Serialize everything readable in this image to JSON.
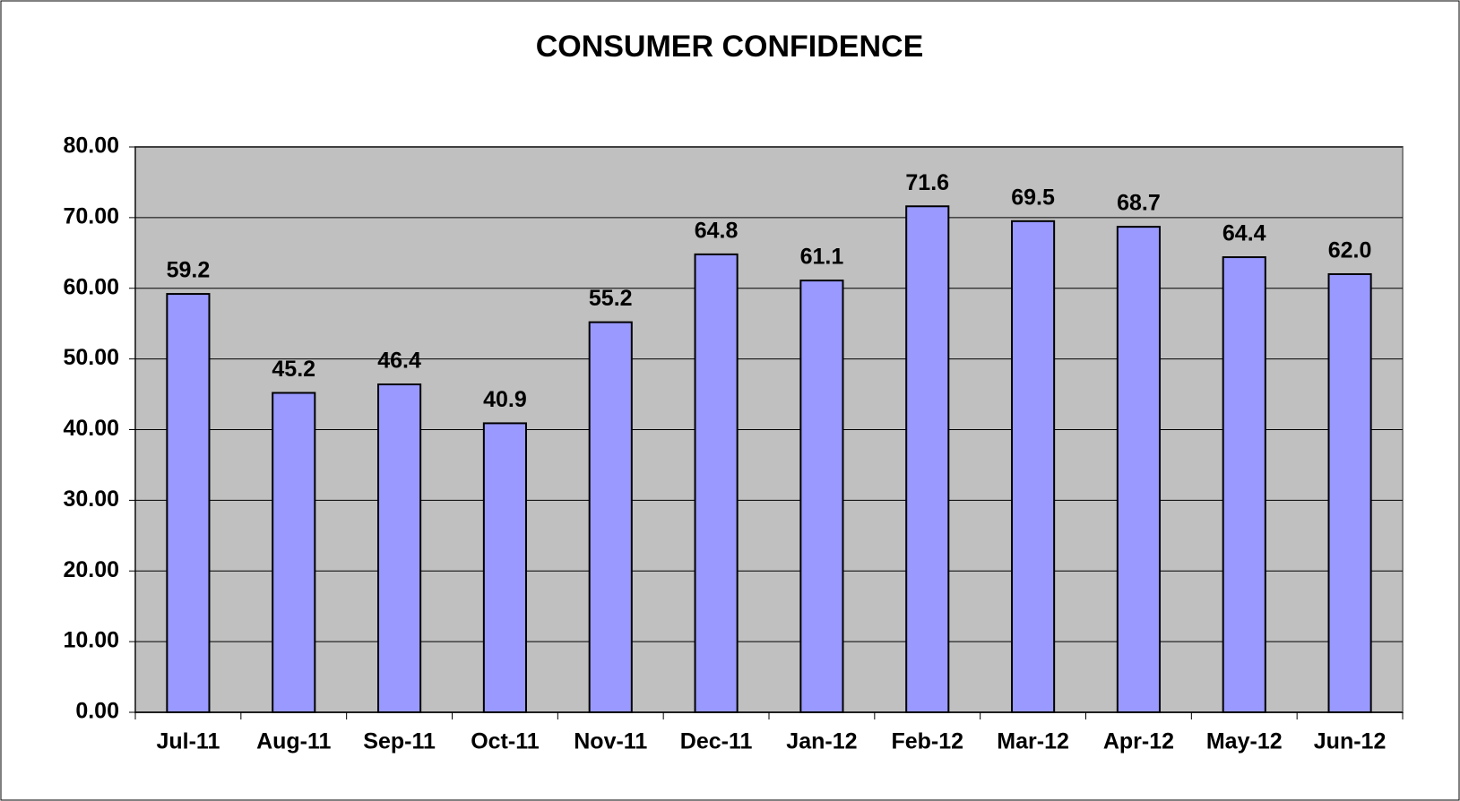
{
  "chart_data": {
    "type": "bar",
    "title": "CONSUMER CONFIDENCE",
    "categories": [
      "Jul-11",
      "Aug-11",
      "Sep-11",
      "Oct-11",
      "Nov-11",
      "Dec-11",
      "Jan-12",
      "Feb-12",
      "Mar-12",
      "Apr-12",
      "May-12",
      "Jun-12"
    ],
    "values": [
      59.2,
      45.2,
      46.4,
      40.9,
      55.2,
      64.8,
      61.1,
      71.6,
      69.5,
      68.7,
      64.4,
      62.0
    ],
    "value_labels": [
      "59.2",
      "45.2",
      "46.4",
      "40.9",
      "55.2",
      "64.8",
      "61.1",
      "71.6",
      "69.5",
      "68.7",
      "64.4",
      "62.0"
    ],
    "color": "#9999ff",
    "ylim": [
      0,
      80
    ],
    "yticks": [
      {
        "value": 0,
        "label": "0.00"
      },
      {
        "value": 10,
        "label": "10.00"
      },
      {
        "value": 20,
        "label": "20.00"
      },
      {
        "value": 30,
        "label": "30.00"
      },
      {
        "value": 40,
        "label": "40.00"
      },
      {
        "value": 50,
        "label": "50.00"
      },
      {
        "value": 60,
        "label": "60.00"
      },
      {
        "value": 70,
        "label": "70.00"
      },
      {
        "value": 80,
        "label": "80.00"
      }
    ],
    "grid": true
  }
}
